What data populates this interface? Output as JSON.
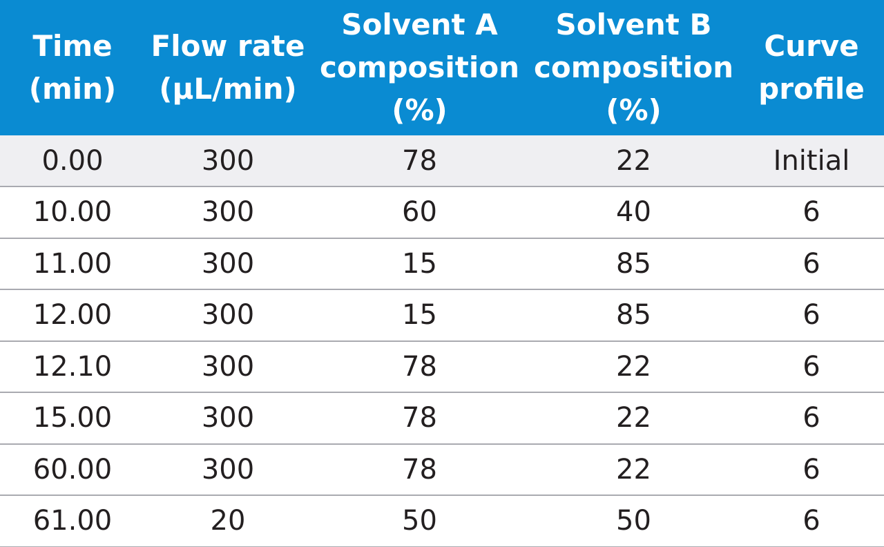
{
  "table": {
    "headers": [
      "Time\n(min)",
      "Flow rate\n(µL/min)",
      "Solvent A\ncomposition\n(%)",
      "Solvent B\ncomposition\n(%)",
      "Curve\nprofile"
    ],
    "rows": [
      [
        "0.00",
        "300",
        "78",
        "22",
        "Initial"
      ],
      [
        "10.00",
        "300",
        "60",
        "40",
        "6"
      ],
      [
        "11.00",
        "300",
        "15",
        "85",
        "6"
      ],
      [
        "12.00",
        "300",
        "15",
        "85",
        "6"
      ],
      [
        "12.10",
        "300",
        "78",
        "22",
        "6"
      ],
      [
        "15.00",
        "300",
        "78",
        "22",
        "6"
      ],
      [
        "60.00",
        "300",
        "78",
        "22",
        "6"
      ],
      [
        "61.00",
        "20",
        "50",
        "50",
        "6"
      ]
    ]
  },
  "colors": {
    "header_bg": "#0a8bd2",
    "header_text": "#ffffff",
    "first_row_bg": "#efeff2",
    "row_divider": "#a9aab0",
    "body_text": "#231f20"
  }
}
